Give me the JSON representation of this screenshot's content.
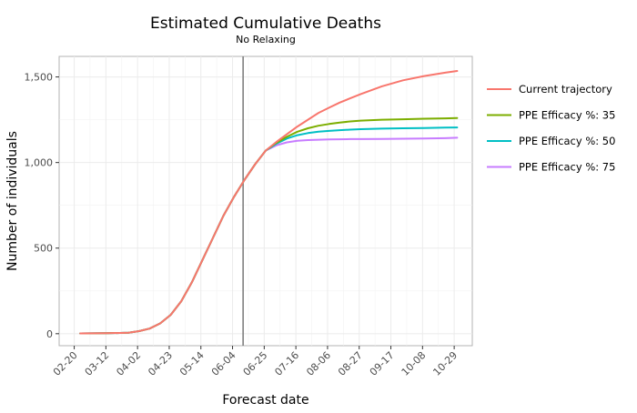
{
  "chart_data": {
    "type": "line",
    "title": "Estimated Cumulative Deaths",
    "subtitle": "No Relaxing",
    "xlabel": "Forecast date",
    "ylabel": "Number of individuals",
    "x_ticks": [
      "02-20",
      "03-12",
      "04-02",
      "04-23",
      "05-14",
      "06-04",
      "06-25",
      "07-16",
      "08-06",
      "08-27",
      "09-17",
      "10-08",
      "10-29"
    ],
    "x_range": [
      "2020-02-10",
      "2020-11-10"
    ],
    "y_ticks": [
      0,
      500,
      1000,
      1500
    ],
    "y_tick_labels": [
      "0",
      "500",
      "1,000",
      "1,500"
    ],
    "ylim": [
      -70,
      1620
    ],
    "grid": true,
    "vertical_marker": "2020-06-11",
    "legend_position": "right",
    "series": [
      {
        "name": "Current trajectory",
        "color": "#F8766D",
        "x": [
          "2020-02-24",
          "2020-03-13",
          "2020-03-27",
          "2020-04-03",
          "2020-04-10",
          "2020-04-17",
          "2020-04-24",
          "2020-05-01",
          "2020-05-08",
          "2020-05-15",
          "2020-05-22",
          "2020-05-29",
          "2020-06-05",
          "2020-06-12",
          "2020-06-19",
          "2020-06-26",
          "2020-07-03",
          "2020-07-10",
          "2020-07-17",
          "2020-07-24",
          "2020-07-31",
          "2020-08-07",
          "2020-08-14",
          "2020-08-21",
          "2020-08-28",
          "2020-09-11",
          "2020-09-25",
          "2020-10-09",
          "2020-10-23",
          "2020-10-31"
        ],
        "values": [
          2,
          3,
          6,
          15,
          30,
          60,
          110,
          190,
          300,
          430,
          560,
          690,
          800,
          900,
          990,
          1070,
          1120,
          1165,
          1210,
          1250,
          1290,
          1320,
          1350,
          1375,
          1400,
          1445,
          1480,
          1505,
          1525,
          1535
        ]
      },
      {
        "name": "PPE Efficacy %: 35",
        "color": "#7CAE00",
        "x": [
          "2020-02-24",
          "2020-03-13",
          "2020-03-27",
          "2020-04-03",
          "2020-04-10",
          "2020-04-17",
          "2020-04-24",
          "2020-05-01",
          "2020-05-08",
          "2020-05-15",
          "2020-05-22",
          "2020-05-29",
          "2020-06-05",
          "2020-06-12",
          "2020-06-19",
          "2020-06-26",
          "2020-07-03",
          "2020-07-10",
          "2020-07-17",
          "2020-07-24",
          "2020-07-31",
          "2020-08-07",
          "2020-08-14",
          "2020-08-21",
          "2020-08-28",
          "2020-09-11",
          "2020-09-25",
          "2020-10-09",
          "2020-10-23",
          "2020-10-31"
        ],
        "values": [
          2,
          3,
          6,
          15,
          30,
          60,
          110,
          190,
          300,
          430,
          560,
          690,
          800,
          900,
          990,
          1070,
          1115,
          1150,
          1180,
          1200,
          1215,
          1225,
          1233,
          1240,
          1245,
          1250,
          1253,
          1256,
          1258,
          1260
        ]
      },
      {
        "name": "PPE Efficacy %: 50",
        "color": "#00BFC4",
        "x": [
          "2020-02-24",
          "2020-03-13",
          "2020-03-27",
          "2020-04-03",
          "2020-04-10",
          "2020-04-17",
          "2020-04-24",
          "2020-05-01",
          "2020-05-08",
          "2020-05-15",
          "2020-05-22",
          "2020-05-29",
          "2020-06-05",
          "2020-06-12",
          "2020-06-19",
          "2020-06-26",
          "2020-07-03",
          "2020-07-10",
          "2020-07-17",
          "2020-07-24",
          "2020-07-31",
          "2020-08-07",
          "2020-08-14",
          "2020-08-21",
          "2020-08-28",
          "2020-09-11",
          "2020-09-25",
          "2020-10-09",
          "2020-10-23",
          "2020-10-31"
        ],
        "values": [
          2,
          3,
          6,
          15,
          30,
          60,
          110,
          190,
          300,
          430,
          560,
          690,
          800,
          900,
          990,
          1070,
          1110,
          1140,
          1160,
          1172,
          1180,
          1185,
          1189,
          1192,
          1195,
          1198,
          1200,
          1202,
          1204,
          1205
        ]
      },
      {
        "name": "PPE Efficacy %: 75",
        "color": "#C77CFF",
        "x": [
          "2020-02-24",
          "2020-03-13",
          "2020-03-27",
          "2020-04-03",
          "2020-04-10",
          "2020-04-17",
          "2020-04-24",
          "2020-05-01",
          "2020-05-08",
          "2020-05-15",
          "2020-05-22",
          "2020-05-29",
          "2020-06-05",
          "2020-06-12",
          "2020-06-19",
          "2020-06-26",
          "2020-07-03",
          "2020-07-10",
          "2020-07-17",
          "2020-07-24",
          "2020-07-31",
          "2020-08-07",
          "2020-08-14",
          "2020-08-21",
          "2020-08-28",
          "2020-09-11",
          "2020-09-25",
          "2020-10-09",
          "2020-10-23",
          "2020-10-31"
        ],
        "values": [
          2,
          3,
          6,
          15,
          30,
          60,
          110,
          190,
          300,
          430,
          560,
          690,
          800,
          900,
          990,
          1070,
          1100,
          1118,
          1127,
          1131,
          1133,
          1135,
          1136,
          1137,
          1137,
          1138,
          1139,
          1140,
          1142,
          1145
        ]
      }
    ]
  }
}
